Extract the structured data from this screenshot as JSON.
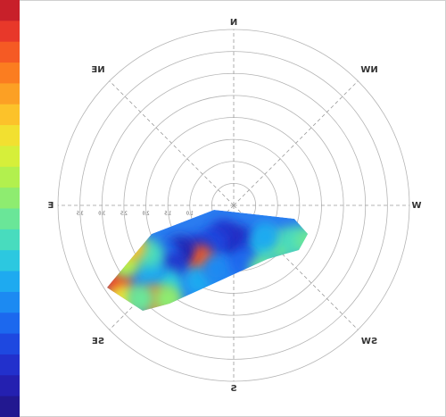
{
  "chart_data": {
    "type": "polar-heat",
    "directions": [
      "N",
      "NE",
      "E",
      "SE",
      "S",
      "SW",
      "W",
      "NW"
    ],
    "rlim": [
      0,
      4
    ],
    "rings": [
      0.5,
      1,
      1.5,
      2,
      2.5,
      3,
      3.5,
      4
    ],
    "rticks": [
      {
        "value": 1,
        "label": "1.0"
      },
      {
        "value": 1.5,
        "label": "1.5"
      },
      {
        "value": 2,
        "label": "2.0"
      },
      {
        "value": 2.5,
        "label": "2.5"
      },
      {
        "value": 3,
        "label": "3.0"
      },
      {
        "value": 3.5,
        "label": "3.5"
      }
    ],
    "colorbar": [
      "#c8202a",
      "#e8382a",
      "#f55a24",
      "#fb7d20",
      "#fca024",
      "#fcc22a",
      "#f2e030",
      "#d6ef3a",
      "#b2f04e",
      "#8eec70",
      "#6ae698",
      "#48dcbe",
      "#2cc8e0",
      "#1eaaf0",
      "#1c8af2",
      "#1c68ee",
      "#1e48e0",
      "#2230cc",
      "#2420b0",
      "#221890"
    ],
    "cells": [
      {
        "b": 180,
        "r": 0.8,
        "v": 0.05
      },
      {
        "b": 200,
        "r": 0.9,
        "v": 0.1
      },
      {
        "b": 160,
        "r": 0.7,
        "v": 0.08
      },
      {
        "b": 215,
        "r": 1.2,
        "v": 0.35
      },
      {
        "b": 230,
        "r": 1.4,
        "v": 0.45
      },
      {
        "b": 240,
        "r": 1.6,
        "v": 0.4
      },
      {
        "b": 225,
        "r": 1.0,
        "v": 0.3
      },
      {
        "b": 245,
        "r": 1.9,
        "v": 0.45
      },
      {
        "b": 150,
        "r": 1.0,
        "v": 0.15
      },
      {
        "b": 140,
        "r": 1.3,
        "v": 0.1
      },
      {
        "b": 148,
        "r": 1.45,
        "v": 0.9
      },
      {
        "b": 130,
        "r": 1.6,
        "v": 0.05
      },
      {
        "b": 125,
        "r": 1.9,
        "v": 0.2
      },
      {
        "b": 135,
        "r": 2.0,
        "v": 0.1
      },
      {
        "b": 140,
        "r": 2.3,
        "v": 0.35
      },
      {
        "b": 128,
        "r": 2.4,
        "v": 0.3
      },
      {
        "b": 120,
        "r": 2.2,
        "v": 0.4
      },
      {
        "b": 124,
        "r": 3.2,
        "v": 0.95
      },
      {
        "b": 130,
        "r": 3.3,
        "v": 0.7
      },
      {
        "b": 118,
        "r": 2.8,
        "v": 0.6
      },
      {
        "b": 140,
        "r": 2.8,
        "v": 0.85
      },
      {
        "b": 145,
        "r": 2.6,
        "v": 0.55
      },
      {
        "b": 135,
        "r": 3.0,
        "v": 0.5
      },
      {
        "b": 155,
        "r": 1.9,
        "v": 0.3
      },
      {
        "b": 165,
        "r": 1.5,
        "v": 0.25
      },
      {
        "b": 190,
        "r": 1.3,
        "v": 0.2
      },
      {
        "b": 205,
        "r": 1.6,
        "v": 0.45
      },
      {
        "b": 112,
        "r": 2.5,
        "v": 0.75
      }
    ]
  }
}
